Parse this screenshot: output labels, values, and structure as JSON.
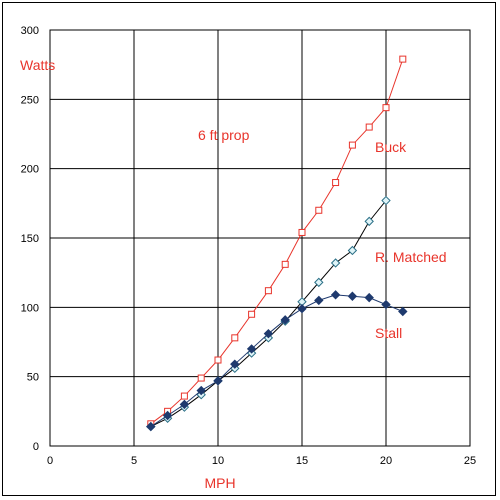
{
  "chart_data": {
    "type": "line",
    "xlabel": "MPH",
    "ylabel": "Watts",
    "xlim": [
      0,
      25
    ],
    "ylim": [
      0,
      300
    ],
    "xticks": [
      0,
      5,
      10,
      15,
      20,
      25
    ],
    "yticks": [
      0,
      50,
      100,
      150,
      200,
      250,
      300
    ],
    "grid": true,
    "annotations": [
      "6 ft prop"
    ],
    "series": [
      {
        "name": "Buck",
        "color": "#e8342b",
        "marker": "square-open",
        "x": [
          6,
          7,
          8,
          9,
          10,
          11,
          12,
          13,
          14,
          15,
          16,
          17,
          18,
          19,
          20,
          21
        ],
        "y": [
          16,
          25,
          36,
          49,
          62,
          78,
          95,
          112,
          131,
          154,
          170,
          190,
          217,
          230,
          244,
          279
        ]
      },
      {
        "name": "R. Matched",
        "color": "#000000",
        "marker": "diamond-open",
        "x": [
          6,
          7,
          8,
          9,
          10,
          11,
          12,
          13,
          14,
          15,
          16,
          17,
          18,
          19,
          20
        ],
        "y": [
          14,
          20,
          28,
          37,
          47,
          56,
          67,
          78,
          90,
          104,
          118,
          132,
          141,
          162,
          177
        ]
      },
      {
        "name": "Stall",
        "color": "#1f3a6e",
        "marker": "diamond-filled",
        "x": [
          6,
          7,
          8,
          9,
          10,
          11,
          12,
          13,
          14,
          15,
          16,
          17,
          18,
          19,
          20,
          21
        ],
        "y": [
          14,
          22,
          30,
          40,
          47,
          59,
          70,
          81,
          91,
          99,
          105,
          109,
          108,
          107,
          102,
          97
        ]
      }
    ]
  }
}
